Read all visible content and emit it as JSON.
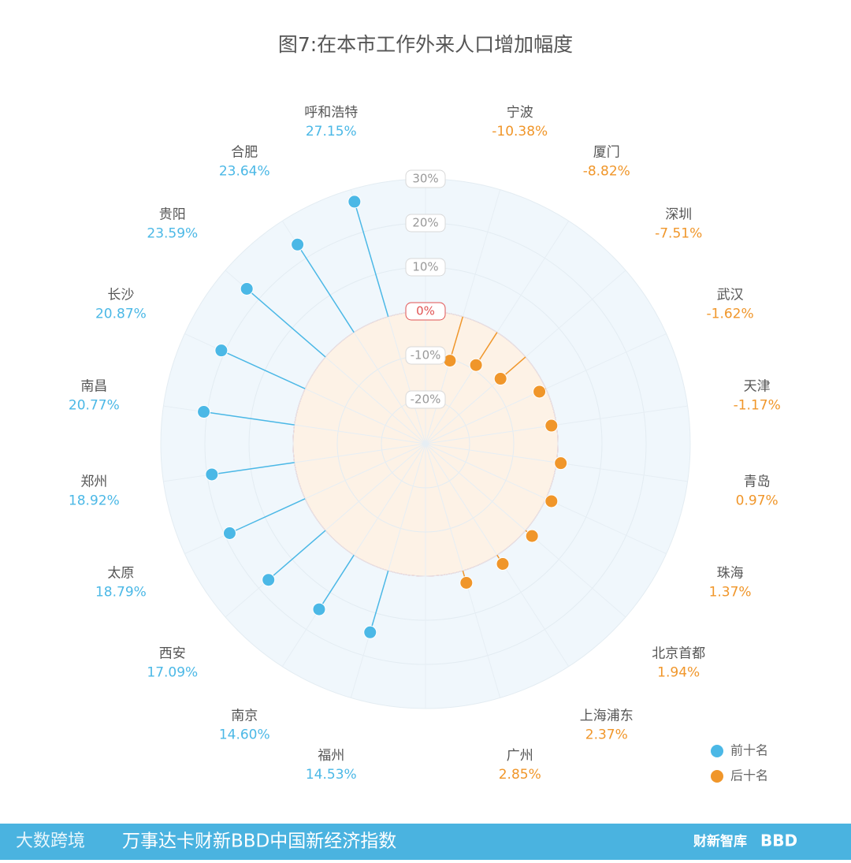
{
  "chart_data": {
    "type": "radial-lollipop",
    "title": "图7:在本市工作外来人口增加幅度",
    "categories": [
      null,
      "宁波",
      "厦门",
      "深圳",
      "武汉",
      "天津",
      "青岛",
      "珠海",
      "北京首都",
      "上海浦东",
      "广州",
      null,
      "福州",
      "南京",
      "西安",
      "太原",
      "郑州",
      "南昌",
      "长沙",
      "贵阳",
      "合肥",
      "呼和浩特"
    ],
    "series": [
      {
        "name": "前十名",
        "color": "#4bb8e6",
        "values": [
          null,
          null,
          null,
          null,
          null,
          null,
          null,
          null,
          null,
          null,
          null,
          null,
          14.53,
          14.6,
          17.09,
          18.79,
          18.92,
          20.77,
          20.87,
          23.59,
          23.64,
          27.15
        ],
        "value_labels": [
          null,
          null,
          null,
          null,
          null,
          null,
          null,
          null,
          null,
          null,
          null,
          null,
          "14.53%",
          "14.60%",
          "17.09%",
          "18.79%",
          "18.92%",
          "20.77%",
          "20.87%",
          "23.59%",
          "23.64%",
          "27.15%"
        ]
      },
      {
        "name": "后十名",
        "color": "#f0962a",
        "values": [
          null,
          -10.38,
          -8.82,
          -7.51,
          -1.62,
          -1.17,
          0.97,
          1.37,
          1.94,
          2.37,
          2.85,
          null,
          null,
          null,
          null,
          null,
          null,
          null,
          null,
          null,
          null,
          null
        ],
        "value_labels": [
          null,
          "-10.38%",
          "-8.82%",
          "-7.51%",
          "-1.62%",
          "-1.17%",
          "0.97%",
          "1.37%",
          "1.94%",
          "2.37%",
          "2.85%",
          null,
          null,
          null,
          null,
          null,
          null,
          null,
          null,
          null,
          null,
          null
        ]
      }
    ],
    "ylim": [
      -30,
      30
    ],
    "yticks": [
      {
        "value": -20,
        "label": "-20%"
      },
      {
        "value": -10,
        "label": "-10%"
      },
      {
        "value": 0,
        "label": "0%"
      },
      {
        "value": 10,
        "label": "10%"
      },
      {
        "value": 20,
        "label": "20%"
      },
      {
        "value": 30,
        "label": "30%"
      }
    ],
    "grid": true
  },
  "footer": {
    "text": "万事达卡财新BBD中国新经济指数",
    "logo_left": "大数跨境",
    "logo_right_1": "财新智库",
    "logo_right_2": "BBD"
  }
}
